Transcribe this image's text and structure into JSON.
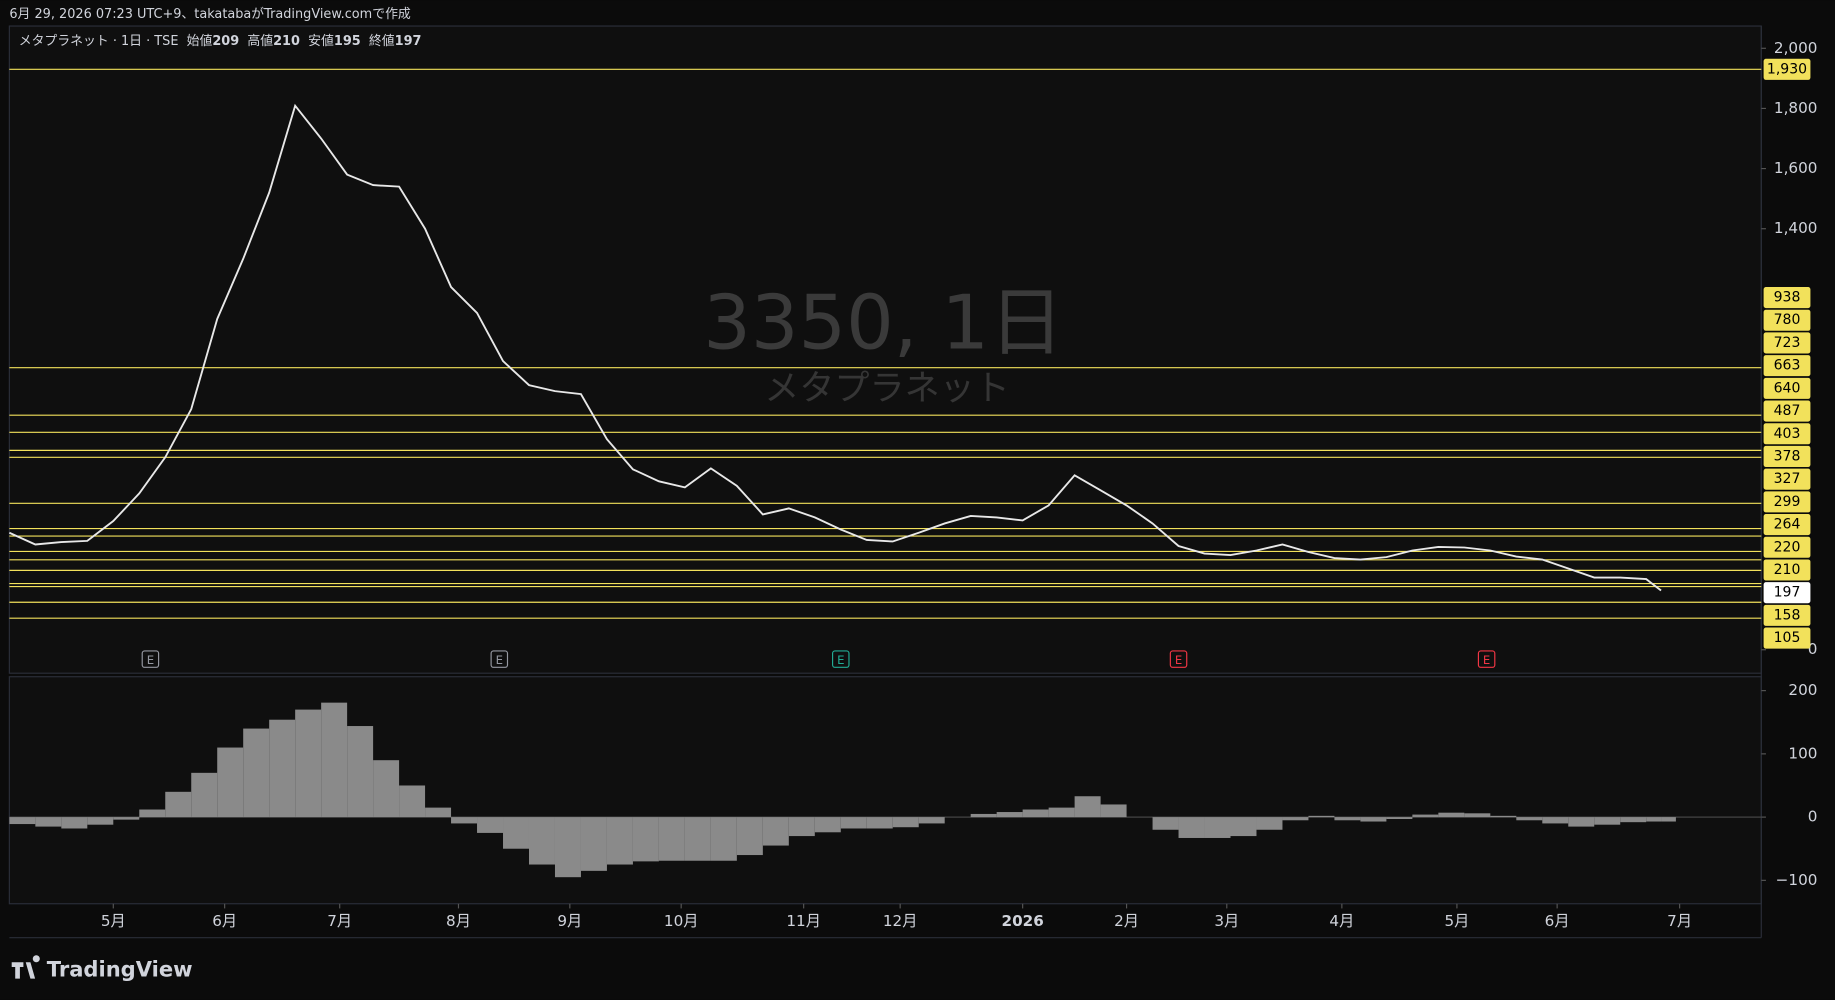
{
  "header": {
    "caption": "6月 29, 2026 07:23 UTC+9、takatabaがTradingView.comで作成",
    "logo": "TradingView"
  },
  "chart_data": [
    {
      "type": "line",
      "title": "メタプラネット · 1日 · TSE",
      "ohlc": [
        {
          "label": "始値",
          "value": 209
        },
        {
          "label": "高値",
          "value": 210
        },
        {
          "label": "安値",
          "value": 195
        },
        {
          "label": "終値",
          "value": 197
        }
      ],
      "watermark": {
        "symbol": "3350, 1日",
        "name": "メタプラネット"
      },
      "color": "#e8e8e8",
      "x": [
        0,
        7,
        14,
        21,
        28,
        35,
        42,
        49,
        56,
        63,
        70,
        77,
        84,
        91,
        98,
        105,
        112,
        119,
        126,
        133,
        140,
        147,
        154,
        161,
        168,
        175,
        182,
        189,
        196,
        203,
        210,
        217,
        224,
        231,
        238,
        245,
        252,
        259,
        266,
        273,
        280,
        287,
        294,
        301,
        308,
        315,
        322,
        329,
        336,
        343,
        350,
        357,
        364,
        371,
        378,
        385,
        392,
        399,
        406,
        413,
        420,
        427,
        434,
        441,
        445
      ],
      "values": [
        389,
        350,
        358,
        362,
        428,
        520,
        640,
        800,
        1100,
        1300,
        1520,
        1809,
        1700,
        1580,
        1545,
        1540,
        1400,
        1206,
        1120,
        960,
        880,
        860,
        850,
        700,
        600,
        560,
        540,
        603,
        545,
        450,
        470,
        440,
        400,
        365,
        360,
        389,
        420,
        445,
        440,
        430,
        480,
        580,
        530,
        480,
        420,
        345,
        320,
        315,
        330,
        350,
        325,
        305,
        300,
        308,
        330,
        342,
        340,
        330,
        310,
        300,
        270,
        240,
        240,
        235,
        197
      ],
      "xlim": [
        0,
        472
      ],
      "ylim": [
        -78,
        2074
      ],
      "yticks": [
        0,
        {
          "value": 1400,
          "label": "1,400"
        },
        {
          "value": 1600,
          "label": "1,600"
        },
        {
          "value": 1800,
          "label": "1,800"
        },
        {
          "value": 2000,
          "label": "2,000"
        }
      ],
      "levels": [
        {
          "value": 1930,
          "label": "1,930"
        },
        938,
        780,
        723,
        663,
        640,
        487,
        403,
        378,
        327,
        299,
        264,
        220,
        210,
        158,
        105
      ],
      "level_color": "#f2e15b",
      "last_value": 197,
      "events": [
        {
          "x": 38,
          "label": "E",
          "color": "#9598a1"
        },
        {
          "x": 132,
          "label": "E",
          "color": "#9598a1"
        },
        {
          "x": 224,
          "label": "E",
          "color": "#22ab94"
        },
        {
          "x": 315,
          "label": "E",
          "color": "#f23645"
        },
        {
          "x": 398,
          "label": "E",
          "color": "#f23645"
        }
      ]
    },
    {
      "type": "bar",
      "color": "#8a8a8a",
      "x": [
        0,
        7,
        14,
        21,
        28,
        35,
        42,
        49,
        56,
        63,
        70,
        77,
        84,
        91,
        98,
        105,
        112,
        119,
        126,
        133,
        140,
        147,
        154,
        161,
        168,
        175,
        182,
        189,
        196,
        203,
        210,
        217,
        224,
        231,
        238,
        245,
        252,
        259,
        266,
        273,
        280,
        287,
        294,
        301,
        308,
        315,
        322,
        329,
        336,
        343,
        350,
        357,
        364,
        371,
        378,
        385,
        392,
        399,
        406,
        413,
        420,
        427,
        434,
        441,
        445
      ],
      "values": [
        -11,
        -15,
        -18,
        -12,
        -4,
        12,
        40,
        70,
        110,
        140,
        154,
        170,
        181,
        144,
        90,
        50,
        15,
        -10,
        -25,
        -50,
        -75,
        -95,
        -85,
        -75,
        -70,
        -69,
        -69,
        -69,
        -60,
        -45,
        -30,
        -24,
        -18,
        -18,
        -16,
        -10,
        0,
        5,
        8,
        12,
        15,
        33,
        20,
        0,
        -20,
        -33,
        -33,
        -30,
        -20,
        -5,
        2,
        -5,
        -7,
        -3,
        4,
        7,
        6,
        2,
        -5,
        -10,
        -15,
        -12,
        -8,
        -7,
        -7
      ],
      "xlim": [
        0,
        472
      ],
      "ylim": [
        -137,
        222
      ],
      "yticks": [
        {
          "value": -100,
          "label": "−100"
        },
        0,
        100,
        200
      ],
      "xticks": [
        {
          "value": 28,
          "label": "5月"
        },
        {
          "value": 58,
          "label": "6月"
        },
        {
          "value": 89,
          "label": "7月"
        },
        {
          "value": 121,
          "label": "8月"
        },
        {
          "value": 151,
          "label": "9月"
        },
        {
          "value": 181,
          "label": "10月"
        },
        {
          "value": 214,
          "label": "11月"
        },
        {
          "value": 240,
          "label": "12月"
        },
        {
          "value": 273,
          "label": "2026"
        },
        {
          "value": 301,
          "label": "2月"
        },
        {
          "value": 328,
          "label": "3月"
        },
        {
          "value": 359,
          "label": "4月"
        },
        {
          "value": 390,
          "label": "5月"
        },
        {
          "value": 417,
          "label": "6月"
        },
        {
          "value": 450,
          "label": "7月"
        }
      ]
    }
  ]
}
